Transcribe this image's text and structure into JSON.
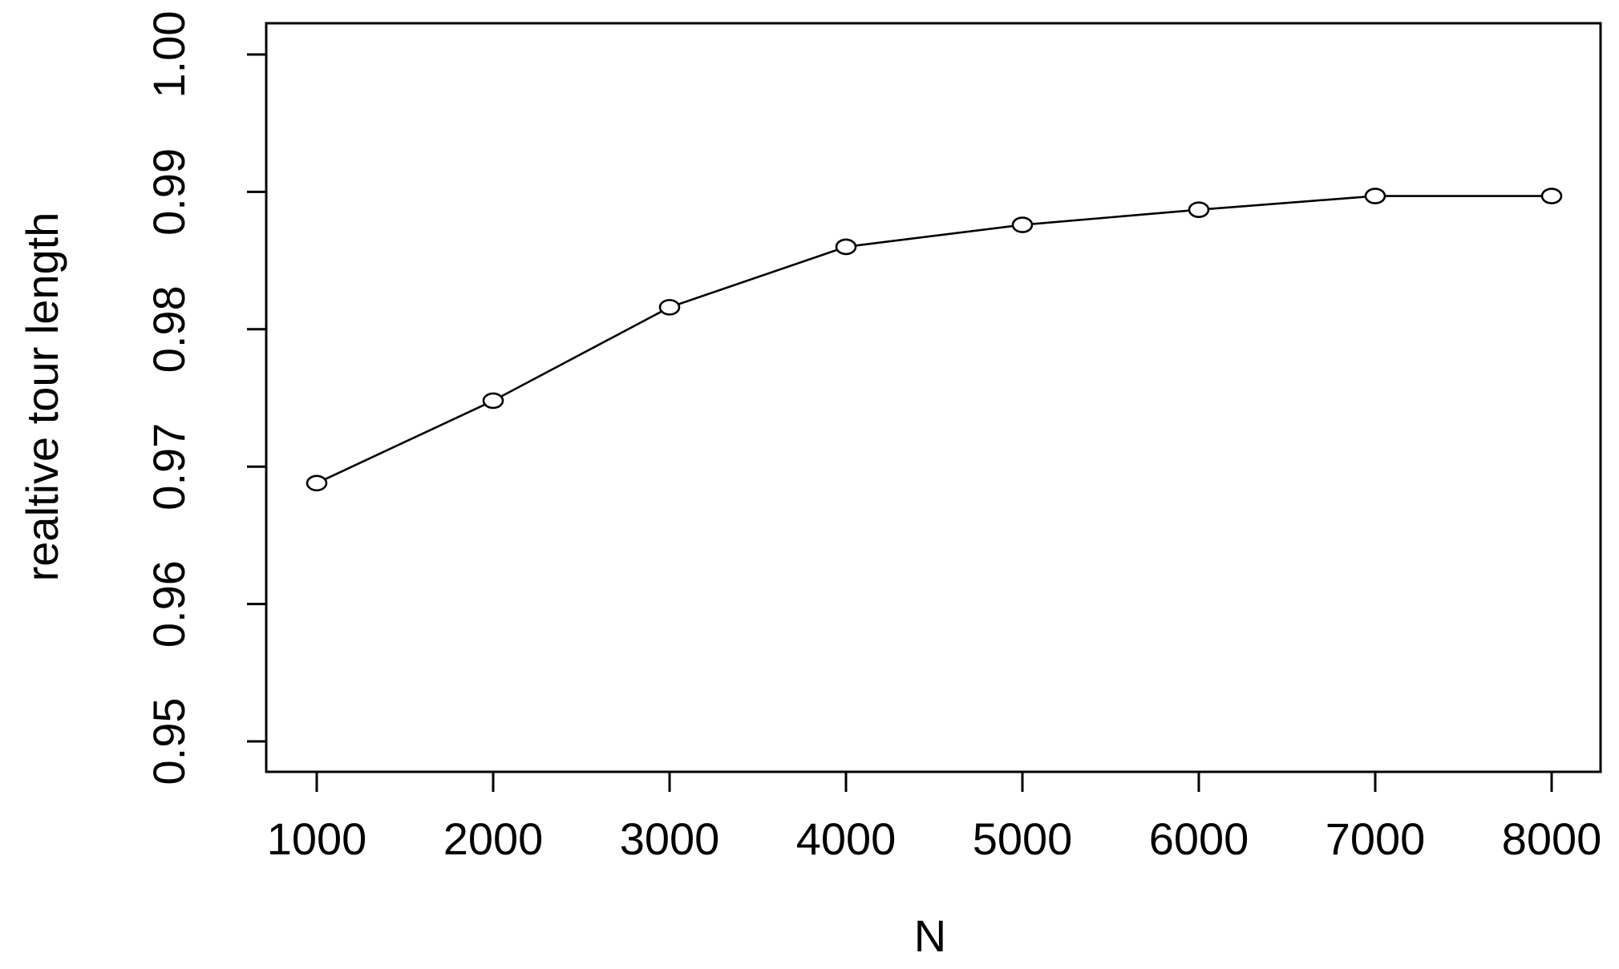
{
  "chart_data": {
    "type": "line",
    "title": "",
    "xlabel": "N",
    "ylabel": "realtive tour length",
    "x": [
      1000,
      2000,
      3000,
      4000,
      5000,
      6000,
      7000,
      8000
    ],
    "x_tick_labels": [
      "1000",
      "2000",
      "3000",
      "4000",
      "5000",
      "6000",
      "7000",
      "8000"
    ],
    "y_ticks": [
      0.95,
      0.96,
      0.97,
      0.98,
      0.99,
      1.0
    ],
    "y_tick_labels": [
      "0.95",
      "0.96",
      "0.97",
      "0.98",
      "0.99",
      "1.00"
    ],
    "ylim": [
      0.95,
      1.0
    ],
    "series": [
      {
        "values": [
          0.9688,
          0.9748,
          0.9816,
          0.986,
          0.9876,
          0.9887,
          0.9897,
          0.9897
        ],
        "marker": "open-circle",
        "color": "#000000"
      }
    ],
    "grid": false,
    "legend": "none"
  }
}
